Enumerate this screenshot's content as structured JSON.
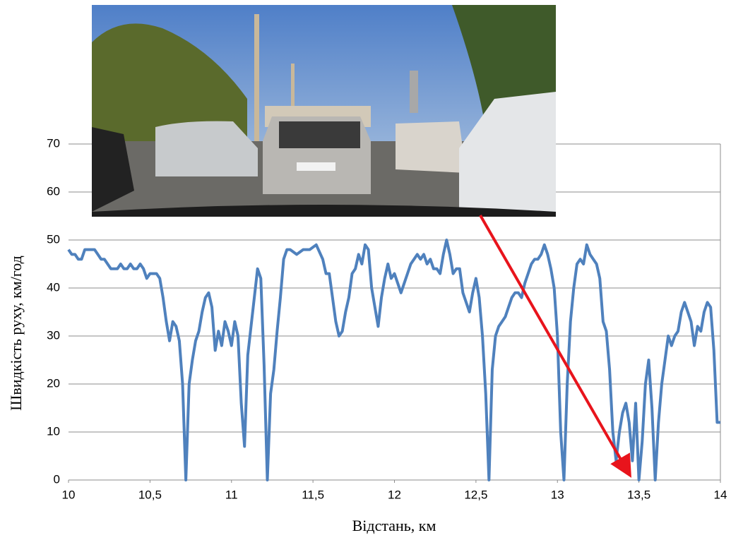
{
  "chart_data": {
    "type": "line",
    "x_label": "Відстань, км",
    "y_label": "Швидкість руху, км/год",
    "x": [
      10.0,
      10.02,
      10.04,
      10.06,
      10.08,
      10.1,
      10.12,
      10.14,
      10.16,
      10.18,
      10.2,
      10.22,
      10.24,
      10.26,
      10.28,
      10.3,
      10.32,
      10.34,
      10.36,
      10.38,
      10.4,
      10.42,
      10.44,
      10.46,
      10.48,
      10.5,
      10.52,
      10.54,
      10.56,
      10.58,
      10.6,
      10.62,
      10.64,
      10.66,
      10.68,
      10.7,
      10.72,
      10.74,
      10.76,
      10.78,
      10.8,
      10.82,
      10.84,
      10.86,
      10.88,
      10.9,
      10.92,
      10.94,
      10.96,
      10.98,
      11.0,
      11.02,
      11.04,
      11.06,
      11.08,
      11.1,
      11.12,
      11.14,
      11.16,
      11.18,
      11.2,
      11.22,
      11.24,
      11.26,
      11.28,
      11.3,
      11.32,
      11.34,
      11.36,
      11.4,
      11.44,
      11.48,
      11.52,
      11.56,
      11.58,
      11.6,
      11.62,
      11.64,
      11.66,
      11.68,
      11.7,
      11.72,
      11.74,
      11.76,
      11.78,
      11.8,
      11.82,
      11.84,
      11.86,
      11.88,
      11.9,
      11.92,
      11.94,
      11.96,
      11.98,
      12.0,
      12.02,
      12.04,
      12.06,
      12.08,
      12.1,
      12.12,
      12.14,
      12.16,
      12.18,
      12.2,
      12.22,
      12.24,
      12.26,
      12.28,
      12.3,
      12.32,
      12.34,
      12.36,
      12.38,
      12.4,
      12.42,
      12.44,
      12.46,
      12.48,
      12.5,
      12.52,
      12.54,
      12.56,
      12.58,
      12.6,
      12.62,
      12.64,
      12.66,
      12.68,
      12.7,
      12.72,
      12.74,
      12.76,
      12.78,
      12.8,
      12.82,
      12.84,
      12.86,
      12.88,
      12.9,
      12.92,
      12.94,
      12.96,
      12.98,
      13.0,
      13.02,
      13.04,
      13.06,
      13.08,
      13.1,
      13.12,
      13.14,
      13.16,
      13.18,
      13.2,
      13.22,
      13.24,
      13.26,
      13.28,
      13.3,
      13.32,
      13.34,
      13.36,
      13.38,
      13.4,
      13.42,
      13.44,
      13.46,
      13.48,
      13.5,
      13.52,
      13.54,
      13.56,
      13.58,
      13.6,
      13.62,
      13.64,
      13.66,
      13.68,
      13.7,
      13.72,
      13.74,
      13.76,
      13.78,
      13.8,
      13.82,
      13.84,
      13.86,
      13.88,
      13.9,
      13.92,
      13.94,
      13.96,
      13.98,
      14.0
    ],
    "series": [
      {
        "name": "Швидкість",
        "color": "#4f81bd",
        "values": [
          48,
          47,
          47,
          46,
          46,
          48,
          48,
          48,
          48,
          47,
          46,
          46,
          45,
          44,
          44,
          44,
          45,
          44,
          44,
          45,
          44,
          44,
          45,
          44,
          42,
          43,
          43,
          43,
          42,
          38,
          33,
          29,
          33,
          32,
          29,
          20,
          0,
          20,
          25,
          29,
          31,
          35,
          38,
          39,
          36,
          27,
          31,
          28,
          33,
          31,
          28,
          33,
          30,
          16,
          7,
          26,
          32,
          38,
          44,
          42,
          24,
          0,
          18,
          23,
          31,
          38,
          46,
          48,
          48,
          47,
          48,
          48,
          49,
          46,
          43,
          43,
          38,
          33,
          30,
          31,
          35,
          38,
          43,
          44,
          47,
          45,
          49,
          48,
          40,
          36,
          32,
          38,
          42,
          45,
          42,
          43,
          41,
          39,
          41,
          43,
          45,
          46,
          47,
          46,
          47,
          45,
          46,
          44,
          44,
          43,
          47,
          50,
          47,
          43,
          44,
          44,
          39,
          37,
          35,
          39,
          42,
          38,
          30,
          18,
          0,
          23,
          30,
          32,
          33,
          34,
          36,
          38,
          39,
          39,
          38,
          41,
          43,
          45,
          46,
          46,
          47,
          49,
          47,
          44,
          40,
          30,
          10,
          0,
          20,
          33,
          40,
          45,
          46,
          45,
          49,
          47,
          46,
          45,
          42,
          33,
          31,
          23,
          10,
          4,
          10,
          14,
          16,
          12,
          4,
          16,
          0,
          8,
          20,
          25,
          15,
          0,
          12,
          20,
          25,
          30,
          28,
          30,
          31,
          35,
          37,
          35,
          33,
          28,
          32,
          31,
          35,
          37,
          36,
          27,
          12,
          12
        ]
      }
    ],
    "xlim": [
      10,
      14
    ],
    "xticks": [
      10,
      {
        "value": 10.5,
        "label": "10,5"
      },
      11,
      {
        "value": 11.5,
        "label": "11,5"
      },
      12,
      {
        "value": 12.5,
        "label": "12,5"
      },
      13,
      {
        "value": 13.5,
        "label": "13,5"
      },
      14
    ],
    "ylim": [
      0,
      70
    ],
    "yticks": [
      0,
      10,
      20,
      30,
      40,
      50,
      60,
      70
    ],
    "grid": true
  }
}
